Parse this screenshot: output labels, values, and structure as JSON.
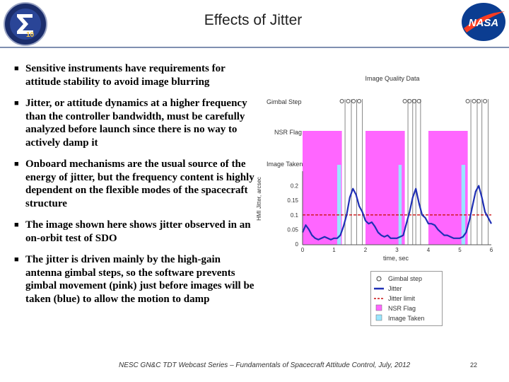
{
  "slide": {
    "title": "Effects of Jitter",
    "bullets": [
      "Sensitive instruments have requirements for attitude stability to avoid image blurring",
      "Jitter, or attitude dynamics at a higher frequency than the controller bandwidth, must be carefully analyzed before launch since there is no way to actively damp it",
      "Onboard mechanisms are the usual source of the energy of jitter, but the frequency content is highly dependent on the flexible modes of the spacecraft structure",
      "The image shown here shows jitter observed in an on-orbit test of SDO",
      "The jitter is driven mainly by the high-gain antenna gimbal steps, so the software prevents gimbal movement (pink) just before images will be taken (blue) to allow the motion to damp"
    ],
    "footer": "NESC GN&C TDT Webcast Series – Fundamentals of Spacecraft Attitude Control, July, 2012",
    "page_number": "22",
    "logos": {
      "left": "nesc-logo",
      "right": "nasa-logo",
      "left_text": "10",
      "right_text": "NASA"
    },
    "bullet_icon": "square-bullet-icon"
  },
  "chart_data": {
    "type": "line",
    "title": "Image Quality Data",
    "xlabel": "time, sec",
    "ylabel": "HMI Jitter, arcsec",
    "row_labels": [
      "Gimbal Step",
      "NSR Flag",
      "Image Taken"
    ],
    "xlim": [
      0,
      6
    ],
    "ylim": [
      0,
      0.25
    ],
    "x_ticks": [
      "0",
      "1",
      "2",
      "3",
      "4",
      "5",
      "6"
    ],
    "y_ticks": [
      "0",
      "0.05",
      "0.1",
      "0.15",
      "0.2"
    ],
    "jitter_limit": 0.1,
    "nsr_flag_intervals": [
      [
        0,
        1.25
      ],
      [
        2.0,
        3.25
      ],
      [
        4.0,
        5.25
      ]
    ],
    "image_taken_intervals": [
      [
        1.1,
        1.22
      ],
      [
        3.05,
        3.15
      ],
      [
        5.05,
        5.17
      ]
    ],
    "gimbal_steps": [
      1.35,
      1.55,
      1.72,
      1.9,
      3.35,
      3.5,
      3.6,
      3.75,
      5.35,
      5.55,
      5.7,
      5.9
    ],
    "gimbal_step_circles": [
      1.25,
      1.45,
      1.62,
      1.8,
      3.25,
      3.4,
      3.55,
      3.7,
      5.25,
      5.45,
      5.6,
      5.8
    ],
    "series": [
      {
        "name": "Jitter",
        "x": [
          0,
          0.1,
          0.2,
          0.3,
          0.4,
          0.5,
          0.6,
          0.7,
          0.8,
          0.9,
          1.0,
          1.1,
          1.2,
          1.3,
          1.4,
          1.5,
          1.6,
          1.7,
          1.8,
          1.9,
          2.0,
          2.1,
          2.2,
          2.3,
          2.4,
          2.5,
          2.6,
          2.7,
          2.8,
          2.9,
          3.0,
          3.1,
          3.2,
          3.3,
          3.4,
          3.5,
          3.6,
          3.7,
          3.8,
          3.9,
          4.0,
          4.1,
          4.2,
          4.3,
          4.4,
          4.5,
          4.6,
          4.7,
          4.8,
          4.9,
          5.0,
          5.1,
          5.2,
          5.3,
          5.4,
          5.5,
          5.6,
          5.7,
          5.8,
          5.9,
          6.0
        ],
        "y": [
          0.04,
          0.065,
          0.05,
          0.03,
          0.02,
          0.015,
          0.02,
          0.025,
          0.02,
          0.015,
          0.02,
          0.02,
          0.03,
          0.06,
          0.1,
          0.16,
          0.19,
          0.17,
          0.13,
          0.11,
          0.08,
          0.07,
          0.075,
          0.06,
          0.04,
          0.03,
          0.025,
          0.03,
          0.02,
          0.02,
          0.02,
          0.025,
          0.03,
          0.07,
          0.11,
          0.16,
          0.19,
          0.14,
          0.1,
          0.09,
          0.07,
          0.07,
          0.065,
          0.05,
          0.04,
          0.03,
          0.03,
          0.025,
          0.02,
          0.02,
          0.02,
          0.025,
          0.04,
          0.08,
          0.13,
          0.18,
          0.2,
          0.16,
          0.11,
          0.09,
          0.07
        ]
      }
    ],
    "legend": {
      "placement": "below",
      "entries": [
        "Gimbal step",
        "Jitter",
        "Jitter limit",
        "NSR Flag",
        "Image Taken"
      ]
    },
    "colors": {
      "nsr": "#ff66ff",
      "image": "#99e6ff",
      "jitter": "#1f2fb5",
      "limit": "#cc1111",
      "gimbal": "#444444"
    }
  }
}
